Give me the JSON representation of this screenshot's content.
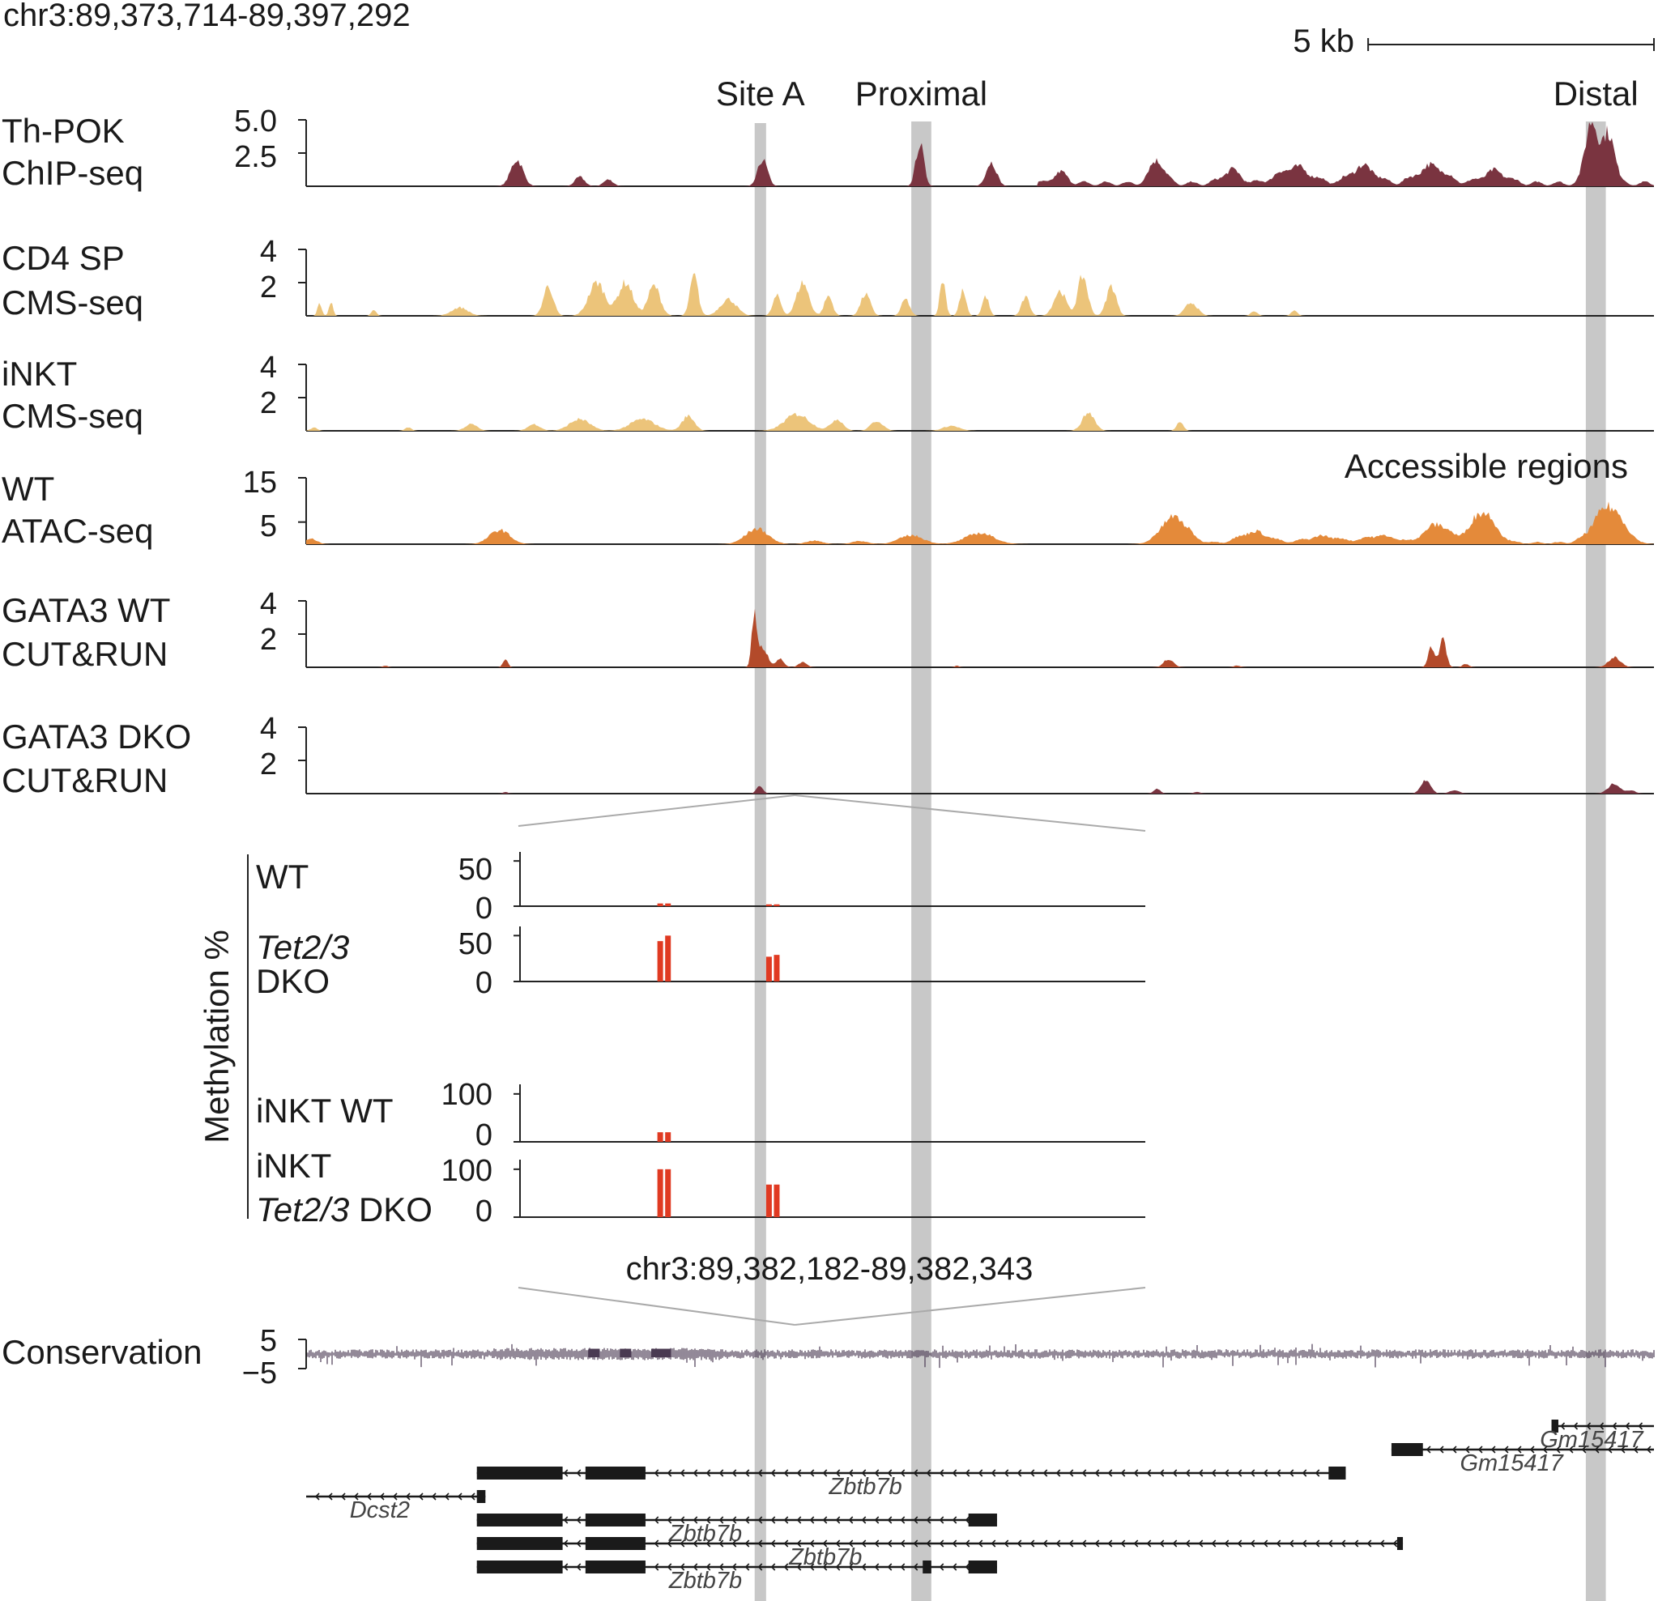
{
  "chart_data": {
    "type": "genome-browser-area",
    "title": "chr3:89,373,714-89,397,292",
    "scale_bar": {
      "label": "5 kb",
      "kb": 5
    },
    "region": {
      "start": 89373714,
      "end": 89397292
    },
    "highlight_sites": [
      {
        "name": "Site A",
        "start": 89381560,
        "end": 89381760
      },
      {
        "name": "Proximal",
        "start": 89384300,
        "end": 89384650
      },
      {
        "name": "Distal",
        "start": 89396100,
        "end": 89396450
      }
    ],
    "tracks": [
      {
        "id": "thpok",
        "label1": "Th-POK",
        "label2": "ChIP-seq",
        "ticks": [
          "5.0",
          "2.5"
        ],
        "tickValues": [
          5.0,
          2.5
        ],
        "ymax": 5.0,
        "color": "#7a3440",
        "peaks": [
          [
            89377400,
            2.0,
            150
          ],
          [
            89378500,
            0.7,
            120
          ],
          [
            89379000,
            0.5,
            120
          ],
          [
            89381700,
            2.0,
            120
          ],
          [
            89384450,
            3.2,
            100
          ],
          [
            89385700,
            1.8,
            130
          ],
          [
            89386900,
            0.8,
            180
          ],
          [
            89388600,
            1.8,
            180
          ],
          [
            89389900,
            1.0,
            220
          ],
          [
            89391000,
            1.2,
            400
          ],
          [
            89392200,
            1.3,
            300
          ],
          [
            89393400,
            1.3,
            350
          ],
          [
            89394500,
            0.9,
            300
          ],
          [
            89396200,
            4.8,
            150
          ],
          [
            89396500,
            3.8,
            150
          ]
        ],
        "base": 0.35,
        "baseStart": 89386500,
        "baseEnd": 89397292
      },
      {
        "id": "cd4cms",
        "label1": "CD4 SP",
        "label2": "CMS-seq",
        "ticks": [
          "4",
          "2"
        ],
        "tickValues": [
          4,
          2
        ],
        "ymax": 4,
        "color": "#ecc47a",
        "peaks": [
          [
            89373950,
            0.8,
            50
          ],
          [
            89374150,
            0.8,
            50
          ],
          [
            89374900,
            0.4,
            60
          ],
          [
            89376400,
            0.5,
            200
          ],
          [
            89377950,
            1.8,
            120
          ],
          [
            89378800,
            2.0,
            200
          ],
          [
            89379300,
            2.0,
            180
          ],
          [
            89379800,
            1.8,
            150
          ],
          [
            89380500,
            2.4,
            100
          ],
          [
            89381100,
            1.0,
            200
          ],
          [
            89381950,
            1.2,
            100
          ],
          [
            89382400,
            2.0,
            150
          ],
          [
            89382850,
            1.2,
            100
          ],
          [
            89383500,
            1.3,
            120
          ],
          [
            89384200,
            1.0,
            100
          ],
          [
            89384850,
            2.2,
            70
          ],
          [
            89385200,
            1.5,
            80
          ],
          [
            89385600,
            1.2,
            80
          ],
          [
            89386300,
            1.1,
            100
          ],
          [
            89386900,
            1.5,
            150
          ],
          [
            89387300,
            2.4,
            120
          ],
          [
            89387800,
            1.8,
            120
          ],
          [
            89389200,
            0.8,
            150
          ],
          [
            89390300,
            0.3,
            80
          ],
          [
            89391000,
            0.3,
            80
          ]
        ]
      },
      {
        "id": "inktcms",
        "label1": "iNKT",
        "label2": "CMS-seq",
        "ticks": [
          "4",
          "2"
        ],
        "tickValues": [
          4,
          2
        ],
        "ymax": 4,
        "color": "#ecc47a",
        "peaks": [
          [
            89373850,
            0.2,
            80
          ],
          [
            89375500,
            0.2,
            80
          ],
          [
            89376600,
            0.4,
            150
          ],
          [
            89377700,
            0.4,
            150
          ],
          [
            89378500,
            0.7,
            250
          ],
          [
            89379600,
            0.7,
            300
          ],
          [
            89380400,
            0.9,
            150
          ],
          [
            89382300,
            1.0,
            300
          ],
          [
            89383000,
            0.7,
            150
          ],
          [
            89383700,
            0.6,
            150
          ],
          [
            89385000,
            0.3,
            200
          ],
          [
            89387400,
            1.1,
            150
          ],
          [
            89389000,
            0.6,
            80
          ]
        ]
      },
      {
        "id": "atac",
        "label1": "WT",
        "label2": "ATAC-seq",
        "ticks": [
          "15",
          "5"
        ],
        "tickValues": [
          15,
          5
        ],
        "ymax": 15,
        "color": "#e48a3a",
        "peaks": [
          [
            89373800,
            1.2,
            150
          ],
          [
            89377100,
            3.2,
            250
          ],
          [
            89381600,
            3.5,
            280
          ],
          [
            89382600,
            0.8,
            200
          ],
          [
            89383400,
            0.7,
            200
          ],
          [
            89384300,
            2.0,
            300
          ],
          [
            89385500,
            2.5,
            350
          ],
          [
            89388900,
            5.8,
            320
          ],
          [
            89390300,
            2.5,
            350
          ],
          [
            89391500,
            1.5,
            400
          ],
          [
            89392500,
            1.6,
            400
          ],
          [
            89393500,
            4.2,
            300
          ],
          [
            89394300,
            7.0,
            300
          ],
          [
            89396500,
            8.2,
            350
          ]
        ],
        "base": 0.5,
        "baseStart": 89388500,
        "baseEnd": 89397000
      },
      {
        "id": "gata3wt",
        "label1": "GATA3 WT",
        "label2": "CUT&RUN",
        "ticks": [
          "4",
          "2"
        ],
        "tickValues": [
          4,
          2
        ],
        "ymax": 4,
        "color": "#b34a2a",
        "peaks": [
          [
            89375100,
            0.1,
            60
          ],
          [
            89377200,
            0.5,
            60
          ],
          [
            89381550,
            3.0,
            60
          ],
          [
            89381700,
            1.2,
            120
          ],
          [
            89382000,
            0.5,
            100
          ],
          [
            89382400,
            0.3,
            100
          ],
          [
            89385100,
            0.1,
            50
          ],
          [
            89388800,
            0.5,
            120
          ],
          [
            89390000,
            0.1,
            80
          ],
          [
            89393400,
            1.2,
            80
          ],
          [
            89393600,
            1.8,
            80
          ],
          [
            89394000,
            0.2,
            80
          ],
          [
            89396600,
            0.6,
            150
          ]
        ]
      },
      {
        "id": "gata3dko",
        "label1": "GATA3 DKO",
        "label2": "CUT&RUN",
        "ticks": [
          "4",
          "2"
        ],
        "tickValues": [
          4,
          2
        ],
        "ymax": 4,
        "color": "#7a3440",
        "peaks": [
          [
            89377200,
            0.1,
            60
          ],
          [
            89381650,
            0.45,
            80
          ],
          [
            89388600,
            0.3,
            80
          ],
          [
            89389300,
            0.1,
            80
          ],
          [
            89393300,
            0.8,
            120
          ],
          [
            89393800,
            0.2,
            120
          ],
          [
            89396600,
            0.6,
            150
          ],
          [
            89396900,
            0.2,
            100
          ]
        ]
      }
    ],
    "methylation": {
      "ylabel": "Methylation %",
      "region_label": "chr3:89,382,182-89,382,343",
      "region": {
        "start": 89382182,
        "end": 89382343
      },
      "color": "#e03a22",
      "panels": [
        {
          "id": "wt",
          "label1": "WT",
          "label2": "",
          "italic1": false,
          "ticks": [
            "50",
            "0"
          ],
          "tickValues": [
            50,
            0
          ],
          "ymax": 60,
          "bars": [
            [
              89382218,
              3
            ],
            [
              89382220,
              3
            ],
            [
              89382246,
              2
            ],
            [
              89382248,
              2
            ]
          ]
        },
        {
          "id": "dko",
          "label1": "Tet2/3",
          "label2": "DKO",
          "italic1": true,
          "ticks": [
            "50",
            "0"
          ],
          "tickValues": [
            50,
            0
          ],
          "ymax": 60,
          "bars": [
            [
              89382218,
              44
            ],
            [
              89382220,
              50
            ],
            [
              89382246,
              27
            ],
            [
              89382248,
              29
            ]
          ]
        },
        {
          "id": "inktwt",
          "label1": "iNKT WT",
          "label2": "",
          "italic1": false,
          "ticks": [
            "100",
            "0"
          ],
          "tickValues": [
            100,
            0
          ],
          "ymax": 120,
          "bars": [
            [
              89382218,
              20
            ],
            [
              89382220,
              20
            ]
          ]
        },
        {
          "id": "inktdko",
          "label1": "iNKT",
          "label2": "Tet2/3",
          "label2b": " DKO",
          "italic1": false,
          "ticks": [
            "100",
            "0"
          ],
          "tickValues": [
            100,
            0
          ],
          "ymax": 120,
          "bars": [
            [
              89382218,
              100
            ],
            [
              89382220,
              100
            ],
            [
              89382246,
              68
            ],
            [
              89382248,
              68
            ]
          ]
        }
      ]
    },
    "conservation": {
      "label": "Conservation",
      "ticks": [
        "5",
        "−5"
      ],
      "tickValues": [
        5,
        -5
      ],
      "ymax": 5,
      "color": "#4a3a52",
      "blocks": [
        [
          89378650,
          89378850,
          1.8
        ],
        [
          89379200,
          89379400,
          1.8
        ],
        [
          89379750,
          89380100,
          1.8
        ]
      ]
    },
    "genes": [
      {
        "name": "Gm15417",
        "strand": "-",
        "start": 89395500,
        "end": 89397292,
        "exons": [
          [
            89395500,
            89395620
          ]
        ],
        "row": 0,
        "labelPos": 89396200
      },
      {
        "name": "Gm15417",
        "strand": "-",
        "start": 89392700,
        "end": 89397292,
        "exons": [
          [
            89392700,
            89393250
          ]
        ],
        "row": 1,
        "labelPos": 89394800
      },
      {
        "name": "Zbtb7b",
        "strand": "-",
        "start": 89376700,
        "end": 89391900,
        "exons": [
          [
            89376700,
            89378200
          ],
          [
            89378600,
            89379650
          ],
          [
            89391600,
            89391900
          ]
        ],
        "row": 2,
        "labelPos": 89383500
      },
      {
        "name": "Dcst2",
        "strand": "-",
        "start": 89373714,
        "end": 89376850,
        "exons": [
          [
            89376700,
            89376850
          ]
        ],
        "row": 3,
        "labelPos": 89375000
      },
      {
        "name": "Zbtb7b",
        "strand": "-",
        "start": 89376700,
        "end": 89385800,
        "exons": [
          [
            89376700,
            89378200
          ],
          [
            89378600,
            89379650
          ],
          [
            89385300,
            89385800
          ]
        ],
        "row": 4,
        "labelPos": 89380700
      },
      {
        "name": "Zbtb7b",
        "strand": "-",
        "start": 89376700,
        "end": 89392900,
        "exons": [
          [
            89376700,
            89378200
          ],
          [
            89378600,
            89379650
          ],
          [
            89392800,
            89392900
          ]
        ],
        "row": 5,
        "labelPos": 89382800
      },
      {
        "name": "Zbtb7b",
        "strand": "-",
        "start": 89376700,
        "end": 89385800,
        "exons": [
          [
            89376700,
            89378200
          ],
          [
            89378600,
            89379650
          ],
          [
            89384500,
            89384650
          ],
          [
            89385300,
            89385800
          ]
        ],
        "row": 6,
        "labelPos": 89380700
      }
    ]
  }
}
